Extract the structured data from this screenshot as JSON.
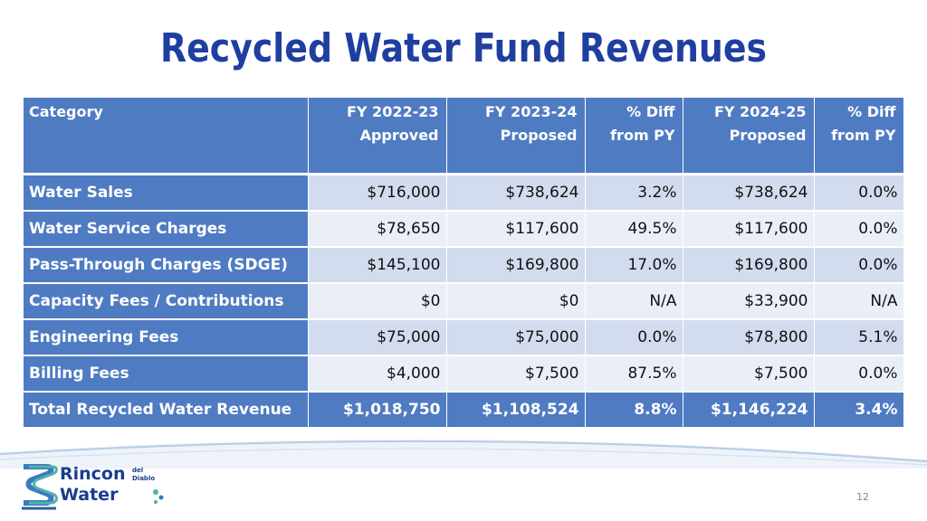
{
  "title": "Recycled Water Fund Revenues",
  "table": {
    "headers": [
      [
        "Category",
        ""
      ],
      [
        "FY 2022-23",
        "Approved"
      ],
      [
        "FY 2023-24",
        "Proposed"
      ],
      [
        "% Diff",
        "from PY"
      ],
      [
        "FY 2024-25",
        "Proposed"
      ],
      [
        "% Diff",
        "from PY"
      ]
    ],
    "rows": [
      [
        "Water Sales",
        "$716,000",
        "$738,624",
        "3.2%",
        "$738,624",
        "0.0%"
      ],
      [
        "Water Service Charges",
        "$78,650",
        "$117,600",
        "49.5%",
        "$117,600",
        "0.0%"
      ],
      [
        "Pass-Through Charges (SDGE)",
        "$145,100",
        "$169,800",
        "17.0%",
        "$169,800",
        "0.0%"
      ],
      [
        "Capacity Fees / Contributions",
        "$0",
        "$0",
        "N/A",
        "$33,900",
        "N/A"
      ],
      [
        "Engineering Fees",
        "$75,000",
        "$75,000",
        "0.0%",
        "$78,800",
        "5.1%"
      ],
      [
        "Billing Fees",
        "$4,000",
        "$7,500",
        "87.5%",
        "$7,500",
        "0.0%"
      ]
    ],
    "total": [
      "Total Recycled Water Revenue",
      "$1,018,750",
      "$1,108,524",
      "8.8%",
      "$1,146,224",
      "3.4%"
    ]
  },
  "logo": {
    "line1": "Rincon",
    "line2": "Water",
    "sub1": "del",
    "sub2": "Diablo",
    "icon": "rincon-water-wave-logo"
  },
  "page_number": "12",
  "colors": {
    "title": "#1f3fa0",
    "header": "#4f7bc3",
    "row_odd": "#d3dcee",
    "row_even": "#eaeef7"
  }
}
